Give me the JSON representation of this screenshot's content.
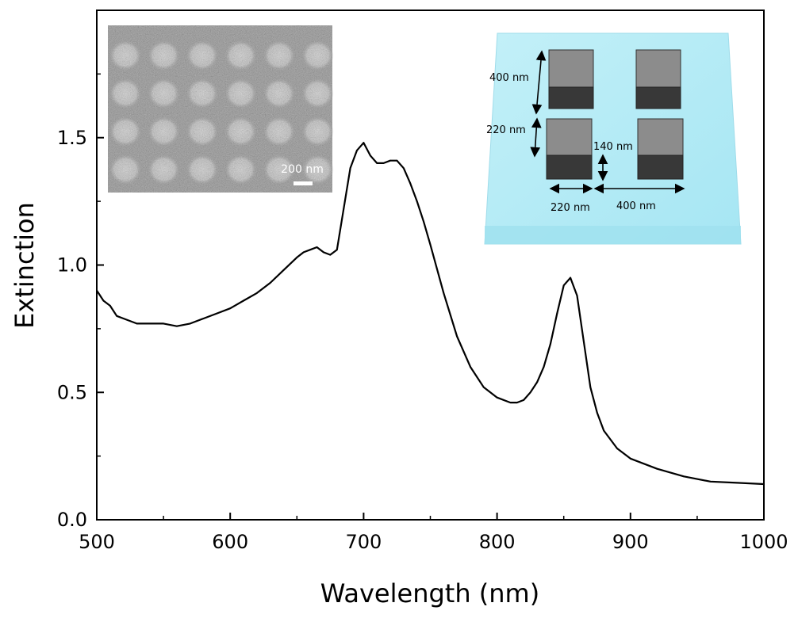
{
  "chart_data": {
    "type": "line",
    "xlabel": "Wavelength (nm)",
    "ylabel": "Extinction",
    "xlim": [
      500,
      1000
    ],
    "ylim": [
      0.0,
      2.0
    ],
    "x_ticks": [
      500,
      600,
      700,
      800,
      900,
      1000
    ],
    "x_tick_labels": [
      "500",
      "600",
      "700",
      "800",
      "900",
      "1000"
    ],
    "y_ticks": [
      0.0,
      0.5,
      1.0,
      1.5
    ],
    "y_tick_labels": [
      "0.0",
      "0.5",
      "1.0",
      "1.5"
    ],
    "grid": false,
    "series": [
      {
        "color": "#000000",
        "x": [
          500,
          505,
          510,
          515,
          520,
          530,
          540,
          550,
          560,
          570,
          580,
          590,
          600,
          610,
          620,
          630,
          640,
          650,
          655,
          660,
          665,
          670,
          675,
          680,
          685,
          690,
          695,
          700,
          705,
          710,
          715,
          720,
          725,
          730,
          735,
          740,
          745,
          750,
          760,
          770,
          780,
          790,
          800,
          810,
          815,
          820,
          825,
          830,
          835,
          840,
          845,
          850,
          855,
          860,
          865,
          870,
          875,
          880,
          890,
          900,
          920,
          940,
          960,
          980,
          1000
        ],
        "y": [
          0.9,
          0.86,
          0.84,
          0.8,
          0.79,
          0.77,
          0.77,
          0.77,
          0.76,
          0.77,
          0.79,
          0.81,
          0.83,
          0.86,
          0.89,
          0.93,
          0.98,
          1.03,
          1.05,
          1.06,
          1.07,
          1.05,
          1.04,
          1.06,
          1.22,
          1.38,
          1.45,
          1.48,
          1.43,
          1.4,
          1.4,
          1.41,
          1.41,
          1.38,
          1.32,
          1.25,
          1.17,
          1.08,
          0.89,
          0.72,
          0.6,
          0.52,
          0.48,
          0.46,
          0.46,
          0.47,
          0.5,
          0.54,
          0.6,
          0.69,
          0.81,
          0.92,
          0.95,
          0.88,
          0.7,
          0.52,
          0.42,
          0.35,
          0.28,
          0.24,
          0.2,
          0.17,
          0.15,
          0.145,
          0.14
        ]
      }
    ]
  },
  "insets": {
    "sem_scale_bar_label": "200 nm",
    "schematic": {
      "dim_top_height": "400 nm",
      "dim_gap_height": "220 nm",
      "dim_cube_height": "140 nm",
      "dim_bottom_width": "220 nm",
      "dim_bottom_pitch": "400 nm",
      "substrate_color": "#aeeaf4",
      "cube_front_color": "#3a3a3a",
      "cube_top_color": "#8a8a8a"
    }
  }
}
